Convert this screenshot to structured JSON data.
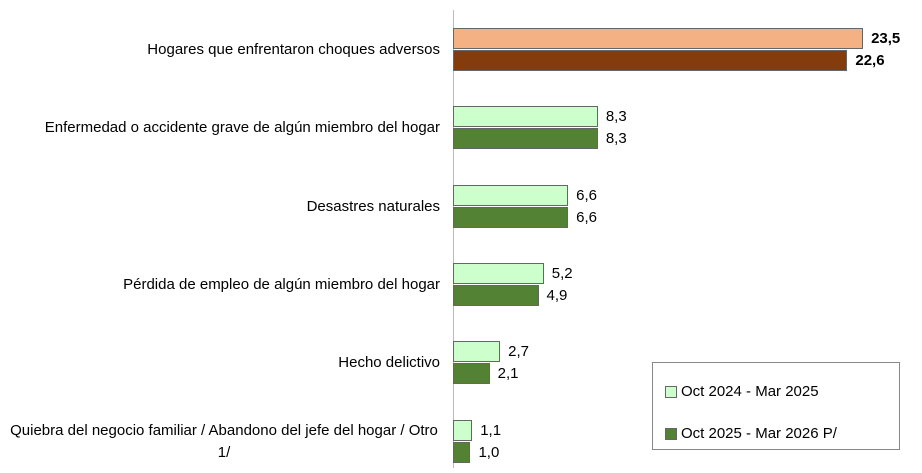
{
  "chart_data": {
    "type": "bar",
    "orientation": "horizontal",
    "categories": [
      "Hogares que enfrentaron choques adversos",
      "Enfermedad o accidente grave de algún miembro del hogar",
      "Desastres naturales",
      "Pérdida de empleo de algún miembro del hogar",
      "Hecho delictivo",
      "Quiebra del negocio familiar / Abandono del jefe del hogar / Otro 1/"
    ],
    "series": [
      {
        "name": "Oct 2024 - Mar 2025",
        "color": "#ccffcc",
        "colors": [
          "#f4b183",
          "#ccffcc",
          "#ccffcc",
          "#ccffcc",
          "#ccffcc",
          "#ccffcc"
        ],
        "values": [
          23.5,
          8.3,
          6.6,
          5.2,
          2.7,
          1.1
        ],
        "value_labels": [
          "23,5",
          "8,3",
          "6,6",
          "5,2",
          "2,7",
          "1,1"
        ]
      },
      {
        "name": "Oct 2025 - Mar 2026 P/",
        "color": "#548235",
        "colors": [
          "#843c0c",
          "#548235",
          "#548235",
          "#548235",
          "#548235",
          "#548235"
        ],
        "values": [
          22.6,
          8.3,
          6.6,
          4.9,
          2.1,
          1.0
        ],
        "value_labels": [
          "22,6",
          "8,3",
          "6,6",
          "4,9",
          "2,1",
          "1,0"
        ]
      }
    ],
    "bold_categories": [
      0
    ],
    "legend": "bottom-right"
  }
}
